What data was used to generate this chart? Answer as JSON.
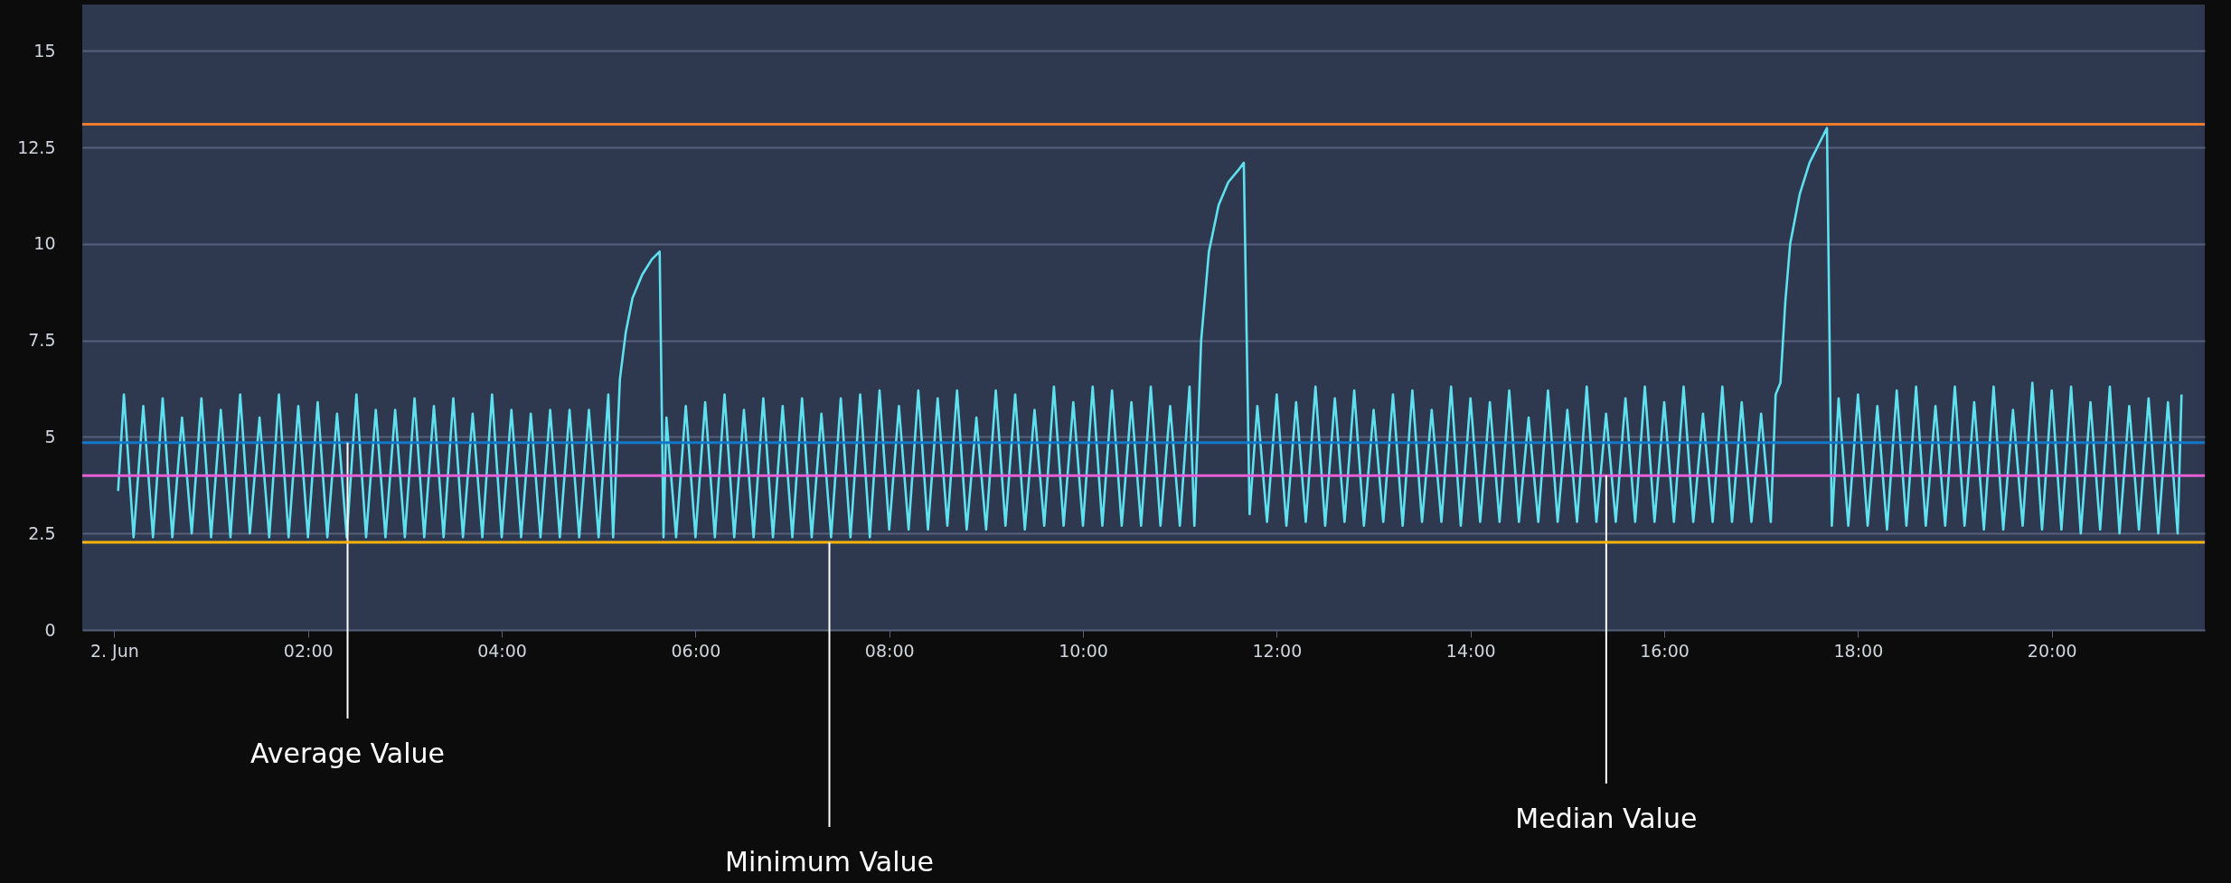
{
  "chart_data": {
    "type": "line",
    "xlim": [
      -0.33,
      21.58
    ],
    "ylim": [
      0,
      16.2
    ],
    "xticks": [
      {
        "value": 0,
        "label": "2. Jun"
      },
      {
        "value": 2,
        "label": "02:00"
      },
      {
        "value": 4,
        "label": "04:00"
      },
      {
        "value": 6,
        "label": "06:00"
      },
      {
        "value": 8,
        "label": "08:00"
      },
      {
        "value": 10,
        "label": "10:00"
      },
      {
        "value": 12,
        "label": "12:00"
      },
      {
        "value": 14,
        "label": "14:00"
      },
      {
        "value": 16,
        "label": "16:00"
      },
      {
        "value": 18,
        "label": "18:00"
      },
      {
        "value": 20,
        "label": "20:00"
      }
    ],
    "yticks": [
      0,
      2.5,
      5,
      7.5,
      10,
      12.5,
      15
    ],
    "grid": "y",
    "series": [
      {
        "color": "#5ee0ee",
        "x": [
          0.04,
          0.1,
          0.2,
          0.3,
          0.4,
          0.5,
          0.6,
          0.7,
          0.8,
          0.9,
          1.0,
          1.1,
          1.2,
          1.3,
          1.4,
          1.5,
          1.6,
          1.7,
          1.8,
          1.9,
          2.0,
          2.1,
          2.2,
          2.3,
          2.4,
          2.5,
          2.6,
          2.7,
          2.8,
          2.9,
          3.0,
          3.1,
          3.2,
          3.3,
          3.4,
          3.5,
          3.6,
          3.7,
          3.8,
          3.9,
          4.0,
          4.1,
          4.2,
          4.3,
          4.4,
          4.5,
          4.6,
          4.7,
          4.8,
          4.9,
          5.0,
          5.1,
          5.15,
          5.22,
          5.28,
          5.35,
          5.45,
          5.55,
          5.63,
          5.67,
          5.7,
          5.8,
          5.9,
          6.0,
          6.1,
          6.2,
          6.3,
          6.4,
          6.5,
          6.6,
          6.7,
          6.8,
          6.9,
          7.0,
          7.1,
          7.2,
          7.3,
          7.4,
          7.5,
          7.6,
          7.7,
          7.8,
          7.9,
          8.0,
          8.1,
          8.2,
          8.3,
          8.4,
          8.5,
          8.6,
          8.7,
          8.8,
          8.9,
          9.0,
          9.1,
          9.2,
          9.3,
          9.4,
          9.5,
          9.6,
          9.7,
          9.8,
          9.9,
          10.0,
          10.1,
          10.2,
          10.3,
          10.4,
          10.5,
          10.6,
          10.7,
          10.8,
          10.9,
          11.0,
          11.1,
          11.15,
          11.22,
          11.3,
          11.4,
          11.5,
          11.6,
          11.66,
          11.72,
          11.8,
          11.9,
          12.0,
          12.1,
          12.2,
          12.3,
          12.4,
          12.5,
          12.6,
          12.7,
          12.8,
          12.9,
          13.0,
          13.1,
          13.2,
          13.3,
          13.4,
          13.5,
          13.6,
          13.7,
          13.8,
          13.9,
          14.0,
          14.1,
          14.2,
          14.3,
          14.4,
          14.5,
          14.6,
          14.7,
          14.8,
          14.9,
          15.0,
          15.1,
          15.2,
          15.3,
          15.4,
          15.5,
          15.6,
          15.7,
          15.8,
          15.9,
          16.0,
          16.1,
          16.2,
          16.3,
          16.4,
          16.5,
          16.6,
          16.7,
          16.8,
          16.9,
          17.0,
          17.1,
          17.15,
          17.2,
          17.25,
          17.3,
          17.4,
          17.5,
          17.6,
          17.68,
          17.73,
          17.8,
          17.9,
          18.0,
          18.1,
          18.2,
          18.3,
          18.4,
          18.5,
          18.6,
          18.7,
          18.8,
          18.9,
          19.0,
          19.1,
          19.2,
          19.3,
          19.4,
          19.5,
          19.6,
          19.7,
          19.8,
          19.9,
          20.0,
          20.1,
          20.2,
          20.3,
          20.4,
          20.5,
          20.6,
          20.7,
          20.8,
          20.9,
          21.0,
          21.1,
          21.2,
          21.3,
          21.34
        ],
        "values": [
          3.6,
          6.1,
          2.4,
          5.8,
          2.4,
          6.0,
          2.4,
          5.5,
          2.5,
          6.0,
          2.4,
          5.7,
          2.4,
          6.1,
          2.5,
          5.5,
          2.4,
          6.1,
          2.4,
          5.8,
          2.4,
          5.9,
          2.4,
          5.6,
          2.4,
          6.1,
          2.4,
          5.7,
          2.4,
          5.7,
          2.4,
          6.0,
          2.4,
          5.8,
          2.4,
          6.0,
          2.4,
          5.6,
          2.4,
          6.1,
          2.4,
          5.7,
          2.4,
          5.6,
          2.4,
          5.7,
          2.4,
          5.7,
          2.4,
          5.7,
          2.4,
          6.1,
          2.4,
          6.5,
          7.7,
          8.6,
          9.2,
          9.6,
          9.8,
          2.4,
          5.5,
          2.4,
          5.8,
          2.4,
          5.9,
          2.4,
          6.1,
          2.4,
          5.7,
          2.4,
          6.0,
          2.4,
          5.8,
          2.4,
          6.0,
          2.4,
          5.6,
          2.4,
          6.0,
          2.4,
          6.1,
          2.4,
          6.2,
          2.6,
          5.8,
          2.6,
          6.2,
          2.6,
          6.0,
          2.7,
          6.2,
          2.6,
          5.5,
          2.6,
          6.2,
          2.7,
          6.1,
          2.6,
          5.7,
          2.7,
          6.3,
          2.7,
          5.9,
          2.7,
          6.3,
          2.7,
          6.2,
          2.7,
          5.9,
          2.7,
          6.3,
          2.7,
          5.8,
          2.7,
          6.3,
          2.7,
          7.5,
          9.8,
          11.0,
          11.6,
          11.9,
          12.1,
          3.0,
          5.8,
          2.8,
          6.1,
          2.7,
          5.9,
          2.8,
          6.3,
          2.7,
          6.0,
          2.8,
          6.2,
          2.7,
          5.7,
          2.8,
          6.1,
          2.7,
          6.2,
          2.8,
          5.7,
          2.8,
          6.3,
          2.7,
          6.0,
          2.8,
          5.9,
          2.8,
          6.2,
          2.8,
          5.5,
          2.8,
          6.2,
          2.8,
          5.7,
          2.8,
          6.3,
          2.8,
          5.6,
          2.8,
          6.0,
          2.8,
          6.3,
          2.8,
          5.9,
          2.8,
          6.3,
          2.8,
          5.6,
          2.8,
          6.3,
          2.8,
          5.9,
          2.8,
          5.6,
          2.8,
          6.1,
          6.4,
          8.5,
          10.0,
          11.3,
          12.1,
          12.6,
          13.0,
          2.7,
          6.0,
          2.7,
          6.1,
          2.7,
          5.8,
          2.6,
          6.2,
          2.7,
          6.3,
          2.7,
          5.8,
          2.7,
          6.3,
          2.7,
          5.9,
          2.6,
          6.3,
          2.6,
          5.7,
          2.7,
          6.4,
          2.6,
          6.2,
          2.6,
          6.3,
          2.5,
          5.9,
          2.6,
          6.3,
          2.5,
          5.8,
          2.6,
          6.0,
          2.5,
          5.9,
          2.5,
          6.1
        ]
      }
    ],
    "ref_lines": [
      {
        "axis": "y",
        "value": 13.1,
        "color": "#f07a2c"
      },
      {
        "axis": "y",
        "value": 4.85,
        "label": "Average Value",
        "color": "#1378c8"
      },
      {
        "axis": "y",
        "value": 4.0,
        "label": "Median Value",
        "color": "#e65fd6"
      },
      {
        "axis": "y",
        "value": 2.27,
        "label": "Minimum Value",
        "color": "#f8b40a"
      }
    ]
  }
}
